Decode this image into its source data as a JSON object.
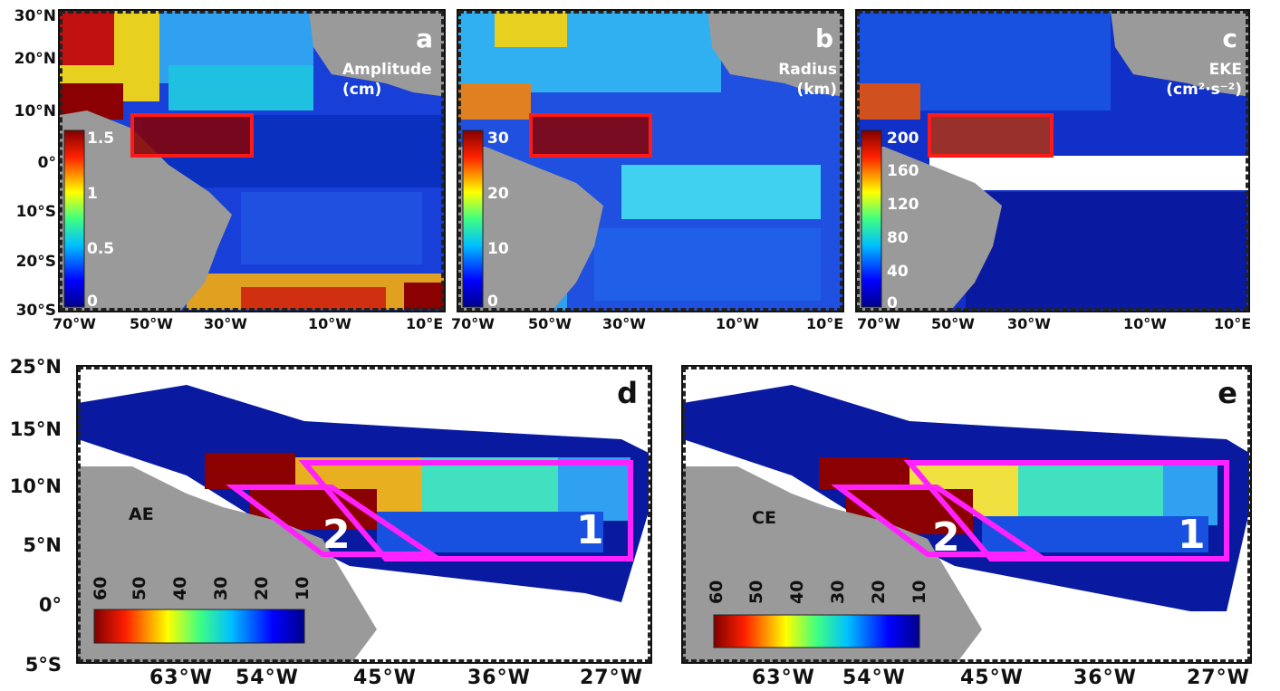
{
  "top_panels": {
    "y_ticks": [
      "30°N",
      "20°N",
      "10°N",
      "0°",
      "10°S",
      "20°S",
      "30°S"
    ],
    "x_ticks": [
      "70°W",
      "50°W",
      "30°W",
      "10°W",
      "10°E"
    ],
    "panels": [
      {
        "letter": "a",
        "var_line1": "Amplitude",
        "var_line2": "(cm)",
        "cbar_ticks": [
          "1.5",
          "1",
          "0.5",
          "0"
        ]
      },
      {
        "letter": "b",
        "var_line1": "Radius",
        "var_line2": "(km)",
        "cbar_ticks": [
          "30",
          "20",
          "10",
          "0"
        ]
      },
      {
        "letter": "c",
        "var_line1": "EKE",
        "var_line2": "(cm²·s⁻²)",
        "cbar_ticks": [
          "200",
          "160",
          "120",
          "80",
          "40",
          "0"
        ]
      }
    ]
  },
  "bottom_panels": {
    "y_ticks": [
      "25°N",
      "15°N",
      "10°N",
      "5°N",
      "0°",
      "5°S"
    ],
    "x_ticks": [
      "63°W",
      "54°W",
      "45°W",
      "36°W",
      "27°W"
    ],
    "cbar_ticks": [
      "60",
      "50",
      "40",
      "30",
      "20",
      "10"
    ],
    "panels": [
      {
        "letter": "d",
        "eddy_type": "AE",
        "region_1": "1",
        "region_2": "2"
      },
      {
        "letter": "e",
        "eddy_type": "CE",
        "region_1": "1",
        "region_2": "2"
      }
    ]
  },
  "colors": {
    "land": "#9a9a9a",
    "box_top": "#ff1a1a",
    "box_bottom": "#ff22ff",
    "ocean_low": "#0a1aa0",
    "ocean_high": "#8b0000"
  }
}
